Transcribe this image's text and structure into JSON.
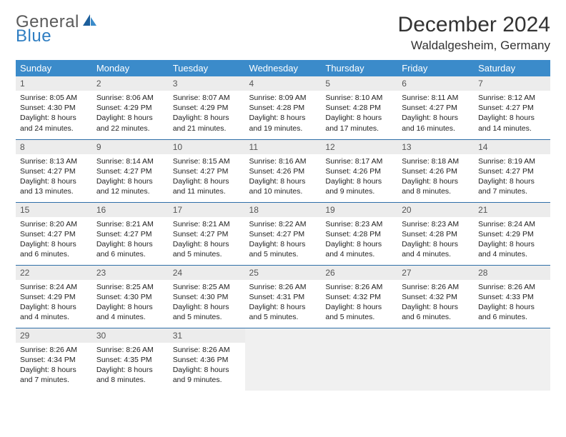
{
  "logo": {
    "text1": "General",
    "text2": "Blue",
    "color_gray": "#5a5a5a",
    "color_blue": "#2f7ec2",
    "sail_dark": "#1c5e9b",
    "sail_light": "#3b8bca"
  },
  "title": "December 2024",
  "location": "Waldalgesheim, Germany",
  "colors": {
    "header_bg": "#3b8bca",
    "header_text": "#ffffff",
    "daynum_bg": "#ececec",
    "row_border": "#2f6fa8",
    "empty_bg": "#f0f0f0"
  },
  "dow": [
    "Sunday",
    "Monday",
    "Tuesday",
    "Wednesday",
    "Thursday",
    "Friday",
    "Saturday"
  ],
  "weeks": [
    [
      {
        "n": "1",
        "sr": "8:05 AM",
        "ss": "4:30 PM",
        "dl": "8 hours and 24 minutes."
      },
      {
        "n": "2",
        "sr": "8:06 AM",
        "ss": "4:29 PM",
        "dl": "8 hours and 22 minutes."
      },
      {
        "n": "3",
        "sr": "8:07 AM",
        "ss": "4:29 PM",
        "dl": "8 hours and 21 minutes."
      },
      {
        "n": "4",
        "sr": "8:09 AM",
        "ss": "4:28 PM",
        "dl": "8 hours and 19 minutes."
      },
      {
        "n": "5",
        "sr": "8:10 AM",
        "ss": "4:28 PM",
        "dl": "8 hours and 17 minutes."
      },
      {
        "n": "6",
        "sr": "8:11 AM",
        "ss": "4:27 PM",
        "dl": "8 hours and 16 minutes."
      },
      {
        "n": "7",
        "sr": "8:12 AM",
        "ss": "4:27 PM",
        "dl": "8 hours and 14 minutes."
      }
    ],
    [
      {
        "n": "8",
        "sr": "8:13 AM",
        "ss": "4:27 PM",
        "dl": "8 hours and 13 minutes."
      },
      {
        "n": "9",
        "sr": "8:14 AM",
        "ss": "4:27 PM",
        "dl": "8 hours and 12 minutes."
      },
      {
        "n": "10",
        "sr": "8:15 AM",
        "ss": "4:27 PM",
        "dl": "8 hours and 11 minutes."
      },
      {
        "n": "11",
        "sr": "8:16 AM",
        "ss": "4:26 PM",
        "dl": "8 hours and 10 minutes."
      },
      {
        "n": "12",
        "sr": "8:17 AM",
        "ss": "4:26 PM",
        "dl": "8 hours and 9 minutes."
      },
      {
        "n": "13",
        "sr": "8:18 AM",
        "ss": "4:26 PM",
        "dl": "8 hours and 8 minutes."
      },
      {
        "n": "14",
        "sr": "8:19 AM",
        "ss": "4:27 PM",
        "dl": "8 hours and 7 minutes."
      }
    ],
    [
      {
        "n": "15",
        "sr": "8:20 AM",
        "ss": "4:27 PM",
        "dl": "8 hours and 6 minutes."
      },
      {
        "n": "16",
        "sr": "8:21 AM",
        "ss": "4:27 PM",
        "dl": "8 hours and 6 minutes."
      },
      {
        "n": "17",
        "sr": "8:21 AM",
        "ss": "4:27 PM",
        "dl": "8 hours and 5 minutes."
      },
      {
        "n": "18",
        "sr": "8:22 AM",
        "ss": "4:27 PM",
        "dl": "8 hours and 5 minutes."
      },
      {
        "n": "19",
        "sr": "8:23 AM",
        "ss": "4:28 PM",
        "dl": "8 hours and 4 minutes."
      },
      {
        "n": "20",
        "sr": "8:23 AM",
        "ss": "4:28 PM",
        "dl": "8 hours and 4 minutes."
      },
      {
        "n": "21",
        "sr": "8:24 AM",
        "ss": "4:29 PM",
        "dl": "8 hours and 4 minutes."
      }
    ],
    [
      {
        "n": "22",
        "sr": "8:24 AM",
        "ss": "4:29 PM",
        "dl": "8 hours and 4 minutes."
      },
      {
        "n": "23",
        "sr": "8:25 AM",
        "ss": "4:30 PM",
        "dl": "8 hours and 4 minutes."
      },
      {
        "n": "24",
        "sr": "8:25 AM",
        "ss": "4:30 PM",
        "dl": "8 hours and 5 minutes."
      },
      {
        "n": "25",
        "sr": "8:26 AM",
        "ss": "4:31 PM",
        "dl": "8 hours and 5 minutes."
      },
      {
        "n": "26",
        "sr": "8:26 AM",
        "ss": "4:32 PM",
        "dl": "8 hours and 5 minutes."
      },
      {
        "n": "27",
        "sr": "8:26 AM",
        "ss": "4:32 PM",
        "dl": "8 hours and 6 minutes."
      },
      {
        "n": "28",
        "sr": "8:26 AM",
        "ss": "4:33 PM",
        "dl": "8 hours and 6 minutes."
      }
    ],
    [
      {
        "n": "29",
        "sr": "8:26 AM",
        "ss": "4:34 PM",
        "dl": "8 hours and 7 minutes."
      },
      {
        "n": "30",
        "sr": "8:26 AM",
        "ss": "4:35 PM",
        "dl": "8 hours and 8 minutes."
      },
      {
        "n": "31",
        "sr": "8:26 AM",
        "ss": "4:36 PM",
        "dl": "8 hours and 9 minutes."
      },
      null,
      null,
      null,
      null
    ]
  ],
  "labels": {
    "sunrise": "Sunrise:",
    "sunset": "Sunset:",
    "daylight": "Daylight:"
  }
}
